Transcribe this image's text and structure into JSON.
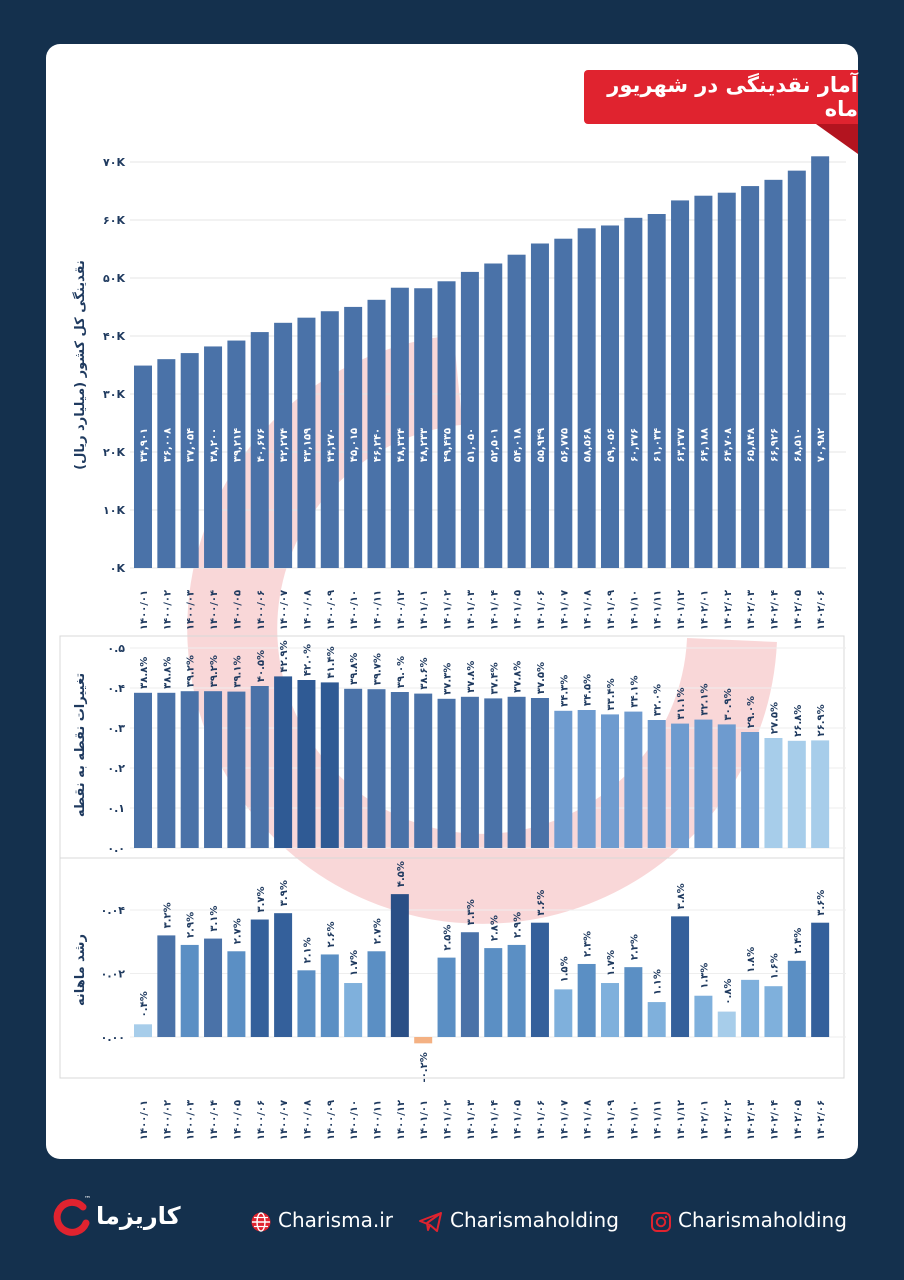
{
  "title": "آمار نقدینگی در شهریور ماه",
  "brand": {
    "name": "کاریزما",
    "trademark": "™"
  },
  "footer": {
    "website": "Charisma.ir",
    "telegram": "Charismaholding",
    "instagram": "Charismaholding"
  },
  "colors": {
    "background": "#14304d",
    "accent_red": "#e0232f",
    "bar_main": "#4a72a8",
    "bar_dark": "#34609b",
    "bar_light": "#a7cdea",
    "negative": "#f4b183"
  },
  "chart_data": [
    {
      "type": "bar",
      "ylabel": "نقدینگی کل کشور (میلیارد ریال)",
      "yticks": [
        "۷۰K",
        "۶۰K",
        "۵۰K",
        "۴۰K",
        "۳۰K",
        "۲۰K",
        "۱۰K",
        "۰K"
      ],
      "ytick_values": [
        70000,
        60000,
        50000,
        40000,
        30000,
        20000,
        10000,
        0
      ],
      "ylim": [
        0,
        70000
      ],
      "categories": [
        "۱۴۰۰/۰۱",
        "۱۴۰۰/۰۲",
        "۱۴۰۰/۰۳",
        "۱۴۰۰/۰۴",
        "۱۴۰۰/۰۵",
        "۱۴۰۰/۰۶",
        "۱۴۰۰/۰۷",
        "۱۴۰۰/۰۸",
        "۱۴۰۰/۰۹",
        "۱۴۰۰/۱۰",
        "۱۴۰۰/۱۱",
        "۱۴۰۰/۱۲",
        "۱۴۰۱/۰۱",
        "۱۴۰۱/۰۲",
        "۱۴۰۱/۰۳",
        "۱۴۰۱/۰۴",
        "۱۴۰۱/۰۵",
        "۱۴۰۱/۰۶",
        "۱۴۰۱/۰۷",
        "۱۴۰۱/۰۸",
        "۱۴۰۱/۰۹",
        "۱۴۰۱/۱۰",
        "۱۴۰۱/۱۱",
        "۱۴۰۱/۱۲",
        "۱۴۰۲/۰۱",
        "۱۴۰۲/۰۲",
        "۱۴۰۲/۰۳",
        "۱۴۰۲/۰۴",
        "۱۴۰۲/۰۵",
        "۱۴۰۲/۰۶"
      ],
      "values": [
        34901,
        36008,
        37054,
        38200,
        39214,
        40676,
        42274,
        43159,
        44270,
        45015,
        46240,
        48324,
        48233,
        49435,
        51050,
        52501,
        54018,
        55949,
        56775,
        58568,
        59056,
        60376,
        61034,
        63377,
        64188,
        64708,
        65848,
        66926,
        68510,
        70982
      ],
      "labels": [
        "۳۴,۹۰۱",
        "۳۶,۰۰۸",
        "۳۷,۰۵۴",
        "۳۸,۲۰۰",
        "۳۹,۲۱۴",
        "۴۰,۶۷۶",
        "۴۲,۲۷۴",
        "۴۳,۱۵۹",
        "۴۴,۲۷۰",
        "۴۵,۰۱۵",
        "۴۶,۲۴۰",
        "۴۸,۳۲۴",
        "۴۸,۲۳۳",
        "۴۹,۴۳۵",
        "۵۱,۰۵۰",
        "۵۲,۵۰۱",
        "۵۴,۰۱۸",
        "۵۵,۹۴۹",
        "۵۶,۷۷۵",
        "۵۸,۵۶۸",
        "۵۹,۰۵۶",
        "۶۰,۳۷۶",
        "۶۱,۰۳۴",
        "۶۳,۳۷۷",
        "۶۴,۱۸۸",
        "۶۴,۷۰۸",
        "۶۵,۸۴۸",
        "۶۶,۹۲۶",
        "۶۸,۵۱۰",
        "۷۰,۹۸۲"
      ]
    },
    {
      "type": "bar",
      "ylabel": "تغییرات نقطه به نقطه",
      "yticks": [
        "۰.۵",
        "۰.۴",
        "۰.۳",
        "۰.۲",
        "۰.۱",
        "۰.۰"
      ],
      "ytick_values": [
        0.5,
        0.4,
        0.3,
        0.2,
        0.1,
        0.0
      ],
      "ylim": [
        0,
        0.5
      ],
      "values": [
        0.388,
        0.388,
        0.392,
        0.392,
        0.391,
        0.405,
        0.429,
        0.42,
        0.414,
        0.398,
        0.397,
        0.39,
        0.386,
        0.373,
        0.378,
        0.374,
        0.378,
        0.375,
        0.343,
        0.345,
        0.334,
        0.341,
        0.32,
        0.311,
        0.321,
        0.309,
        0.29,
        0.275,
        0.268,
        0.269
      ],
      "labels": [
        "۳۸.۸%",
        "۳۸.۸%",
        "۳۹.۲%",
        "۳۹.۲%",
        "۳۹.۱%",
        "۴۰.۵%",
        "۴۲.۹%",
        "۴۲.۰%",
        "۴۱.۴%",
        "۳۹.۸%",
        "۳۹.۷%",
        "۳۹.۰%",
        "۳۸.۶%",
        "۳۷.۳%",
        "۳۷.۸%",
        "۳۷.۴%",
        "۳۷.۸%",
        "۳۷.۵%",
        "۳۴.۳%",
        "۳۴.۵%",
        "۳۳.۴%",
        "۳۴.۱%",
        "۳۲.۰%",
        "۳۱.۱%",
        "۳۲.۱%",
        "۳۰.۹%",
        "۲۹.۰%",
        "۲۷.۵%",
        "۲۶.۸%",
        "۲۶.۹%"
      ]
    },
    {
      "type": "bar",
      "ylabel": "رشد ماهانه",
      "yticks": [
        "۰.۰۴",
        "۰.۰۲",
        "۰.۰۰"
      ],
      "ytick_values": [
        0.04,
        0.02,
        0.0
      ],
      "ylim": [
        -0.003,
        0.047
      ],
      "categories": [
        "۱۴۰۰/۰۱",
        "۱۴۰۰/۰۲",
        "۱۴۰۰/۰۳",
        "۱۴۰۰/۰۴",
        "۱۴۰۰/۰۵",
        "۱۴۰۰/۰۶",
        "۱۴۰۰/۰۷",
        "۱۴۰۰/۰۸",
        "۱۴۰۰/۰۹",
        "۱۴۰۰/۱۰",
        "۱۴۰۰/۱۱",
        "۱۴۰۰/۱۲",
        "۱۴۰۱/۰۱",
        "۱۴۰۱/۰۲",
        "۱۴۰۱/۰۳",
        "۱۴۰۱/۰۴",
        "۱۴۰۱/۰۵",
        "۱۴۰۱/۰۶",
        "۱۴۰۱/۰۷",
        "۱۴۰۱/۰۸",
        "۱۴۰۱/۰۹",
        "۱۴۰۱/۱۰",
        "۱۴۰۱/۱۱",
        "۱۴۰۱/۱۲",
        "۱۴۰۲/۰۱",
        "۱۴۰۲/۰۲",
        "۱۴۰۲/۰۳",
        "۱۴۰۲/۰۴",
        "۱۴۰۲/۰۵",
        "۱۴۰۲/۰۶"
      ],
      "values": [
        0.004,
        0.032,
        0.029,
        0.031,
        0.027,
        0.037,
        0.039,
        0.021,
        0.026,
        0.017,
        0.027,
        0.045,
        -0.002,
        0.025,
        0.033,
        0.028,
        0.029,
        0.036,
        0.015,
        0.023,
        0.017,
        0.022,
        0.011,
        0.038,
        0.013,
        0.008,
        0.018,
        0.016,
        0.024,
        0.036
      ],
      "labels": [
        "۰.۴%",
        "۳.۲%",
        "۲.۹%",
        "۳.۱%",
        "۲.۷%",
        "۳.۷%",
        "۳.۹%",
        "۲.۱%",
        "۲.۶%",
        "۱.۷%",
        "۲.۷%",
        "۴.۵%",
        "-۰.۲%",
        "۲.۵%",
        "۳.۳%",
        "۲.۸%",
        "۲.۹%",
        "۳.۶%",
        "۱.۵%",
        "۲.۳%",
        "۱.۷%",
        "۲.۲%",
        "۱.۱%",
        "۳.۸%",
        "۱.۳%",
        "۰.۸%",
        "۱.۸%",
        "۱.۶%",
        "۲.۴%",
        "۳.۶%"
      ]
    }
  ]
}
